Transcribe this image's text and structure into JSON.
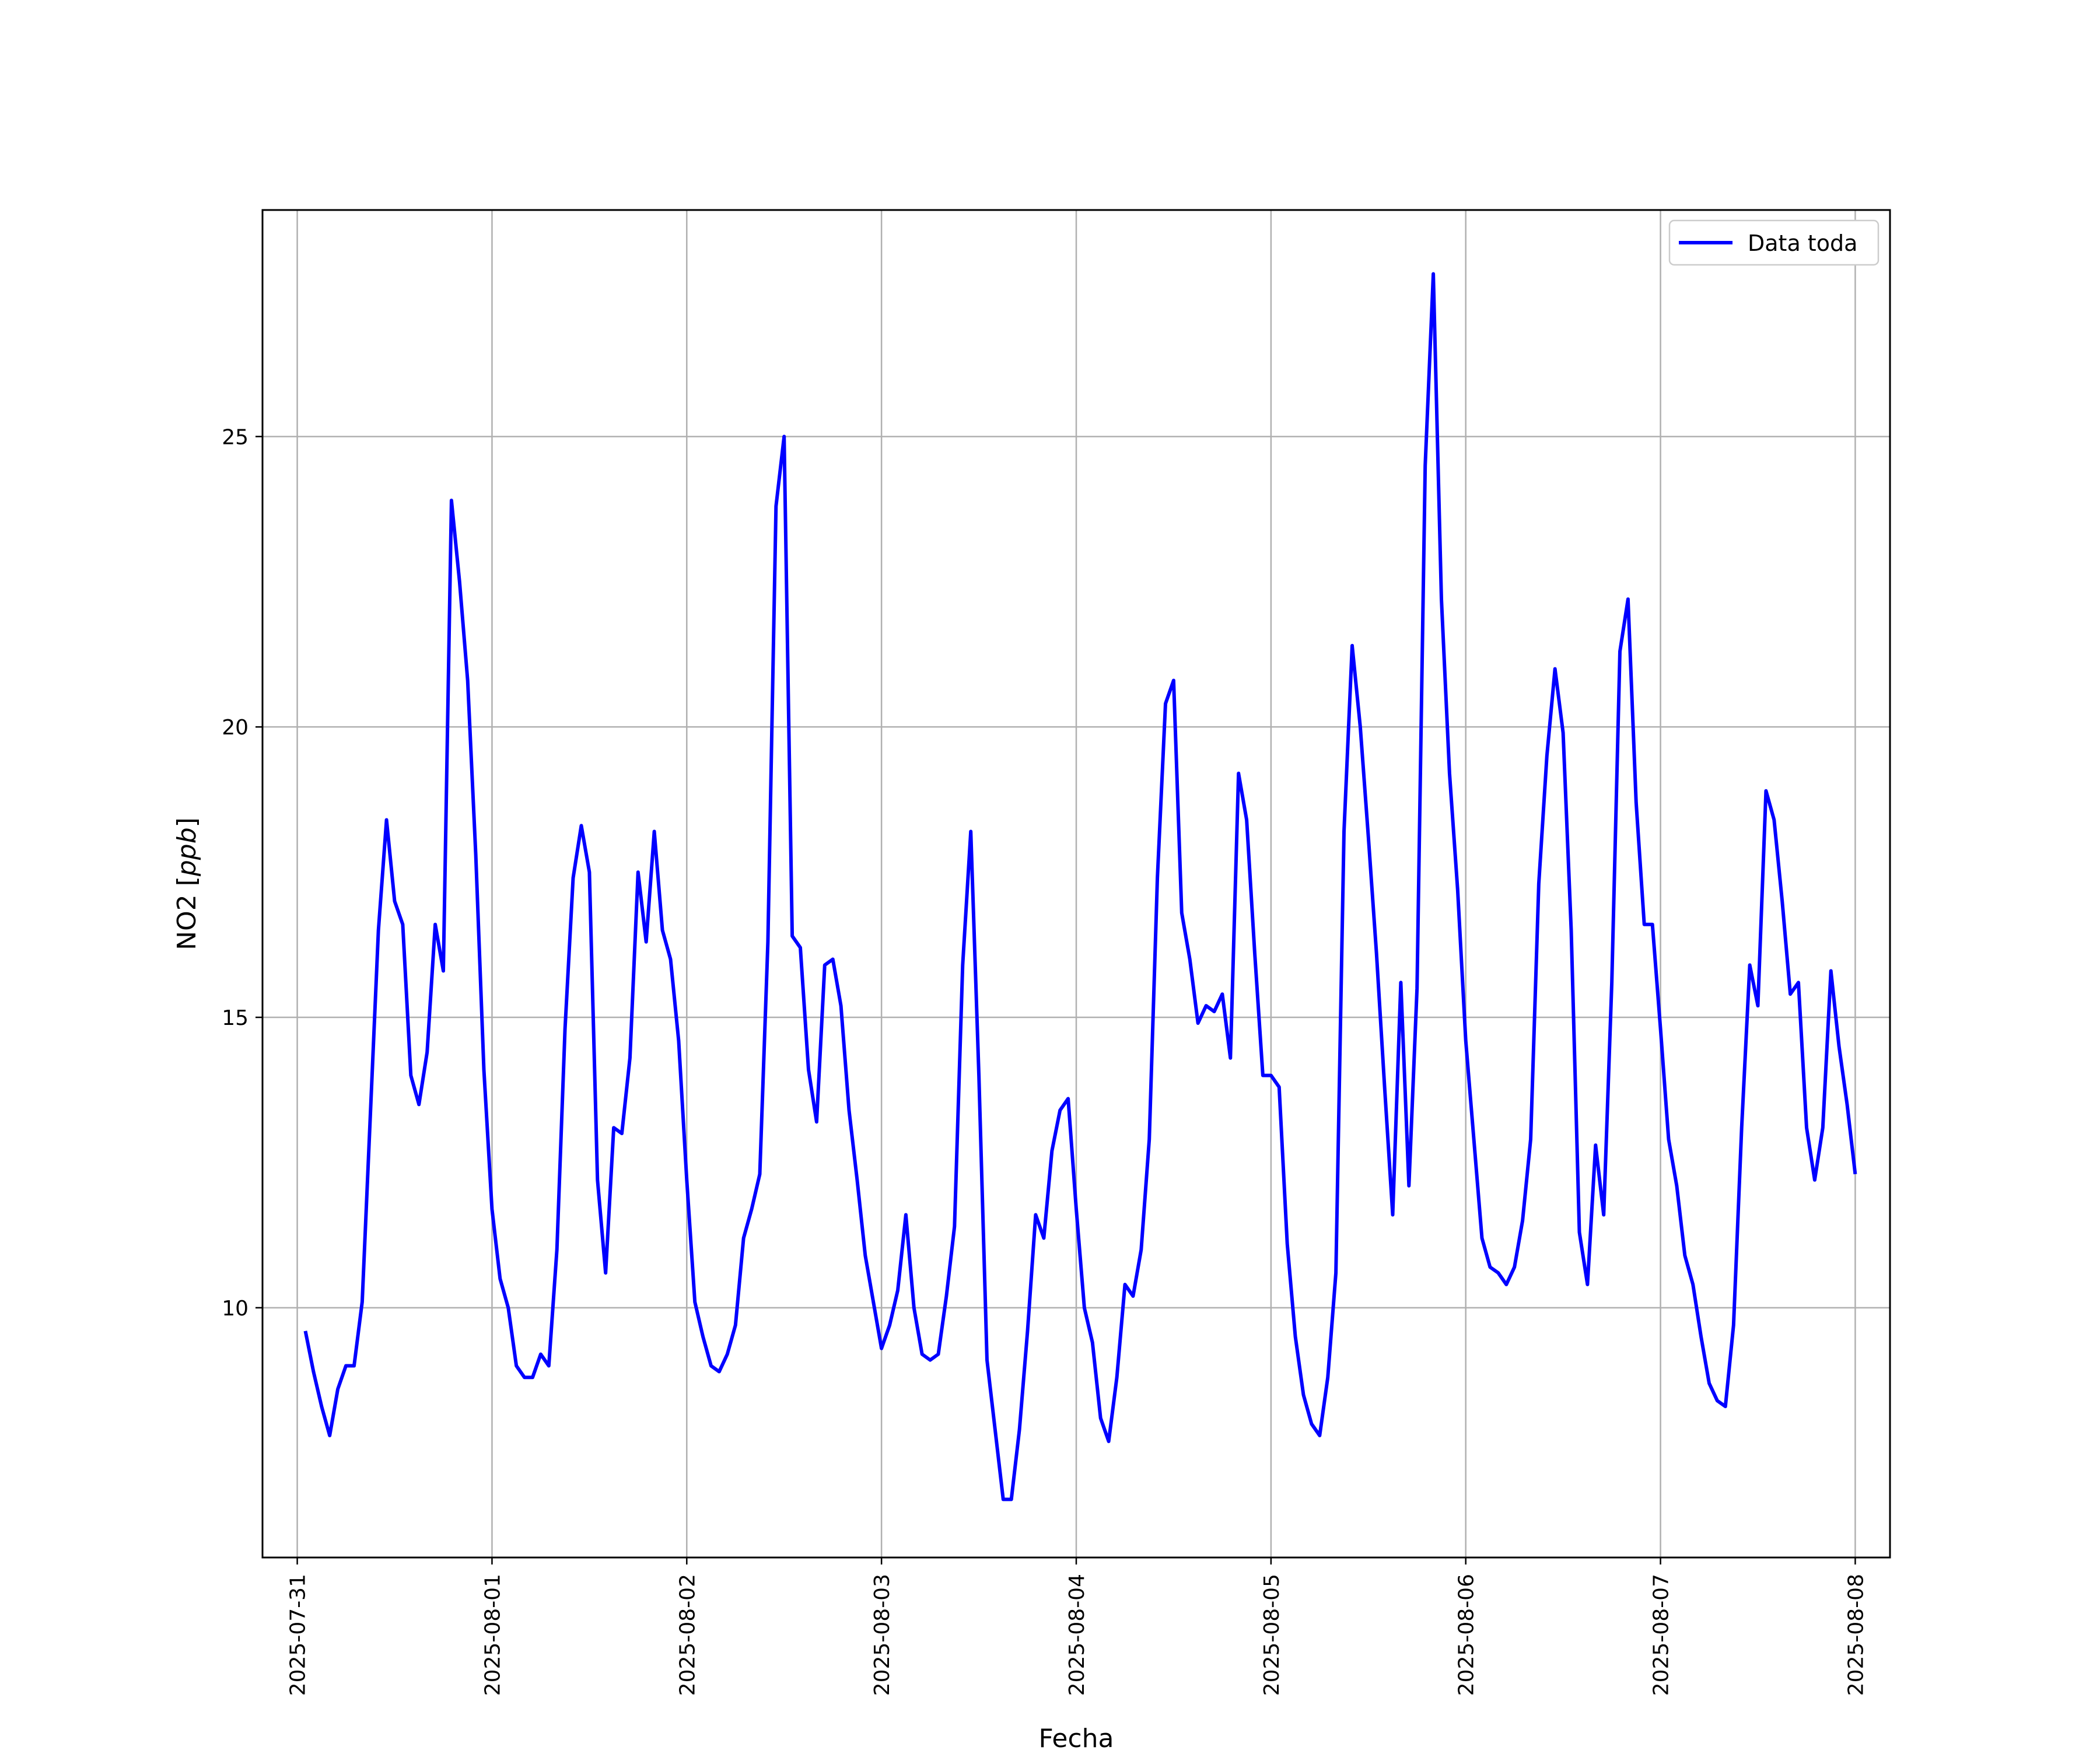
{
  "chart_data": {
    "type": "line",
    "title": "",
    "xlabel": "Fecha",
    "ylabel": "NO2 [ppb]",
    "ylabel_italic": "ppb",
    "xlim": [
      "2025-07-30T19:43",
      "2025-08-08T04:17"
    ],
    "ylim": [
      5.7,
      28.9
    ],
    "yticks": [
      10,
      15,
      20,
      25
    ],
    "xticks": [
      "2025-07-31",
      "2025-08-01",
      "2025-08-02",
      "2025-08-03",
      "2025-08-04",
      "2025-08-05",
      "2025-08-06",
      "2025-08-07",
      "2025-08-08"
    ],
    "grid": true,
    "legend": "top-right",
    "series": [
      {
        "name": "Data toda",
        "color": "#0000ff",
        "start": "2025-07-31T01:00",
        "step_hours": 1,
        "values": [
          9.6,
          8.9,
          8.3,
          7.8,
          8.6,
          9.0,
          9.0,
          10.1,
          13.3,
          16.5,
          18.4,
          17.0,
          16.6,
          14.0,
          13.5,
          14.4,
          16.6,
          15.8,
          23.9,
          22.5,
          20.8,
          17.8,
          14.1,
          11.7,
          10.5,
          10.0,
          9.0,
          8.8,
          8.8,
          9.2,
          9.0,
          11.0,
          14.8,
          17.4,
          18.3,
          17.5,
          12.2,
          10.6,
          13.1,
          13.0,
          14.3,
          17.5,
          16.3,
          18.2,
          16.5,
          16.0,
          14.6,
          12.2,
          10.1,
          9.5,
          9.0,
          8.9,
          9.2,
          9.7,
          11.2,
          11.7,
          12.3,
          16.3,
          23.8,
          25.0,
          16.4,
          16.2,
          14.1,
          13.2,
          15.9,
          16.0,
          15.2,
          13.4,
          12.2,
          10.9,
          10.1,
          9.3,
          9.7,
          10.3,
          11.6,
          10.0,
          9.2,
          9.1,
          9.2,
          10.2,
          11.4,
          15.9,
          18.2,
          14.0,
          9.1,
          7.9,
          6.7,
          6.7,
          7.9,
          9.6,
          11.6,
          11.2,
          12.7,
          13.4,
          13.6,
          11.7,
          10.0,
          9.4,
          8.1,
          7.7,
          8.8,
          10.4,
          10.2,
          11.0,
          12.9,
          17.4,
          20.4,
          20.8,
          16.8,
          16.0,
          14.9,
          15.2,
          15.1,
          15.4,
          14.3,
          19.2,
          18.4,
          16.1,
          14.0,
          14.0,
          13.8,
          11.1,
          9.5,
          8.5,
          8.0,
          7.8,
          8.8,
          10.6,
          18.2,
          21.4,
          20.0,
          18.1,
          16.1,
          13.8,
          11.6,
          15.6,
          12.1,
          15.5,
          24.5,
          27.8,
          22.2,
          19.2,
          17.2,
          14.6,
          12.9,
          11.2,
          10.7,
          10.6,
          10.4,
          10.7,
          11.5,
          12.9,
          17.3,
          19.5,
          21.0,
          19.9,
          16.5,
          11.3,
          10.4,
          12.8,
          11.6,
          15.6,
          21.3,
          22.2,
          18.7,
          16.6,
          16.6,
          14.8,
          12.9,
          12.1,
          10.9,
          10.4,
          9.5,
          8.7,
          8.4,
          8.3,
          9.7,
          13.1,
          15.9,
          15.2,
          18.9,
          18.4,
          17.0,
          15.4,
          15.6,
          13.1,
          12.2,
          13.1,
          15.8,
          14.5,
          13.5,
          12.3
        ]
      }
    ]
  }
}
